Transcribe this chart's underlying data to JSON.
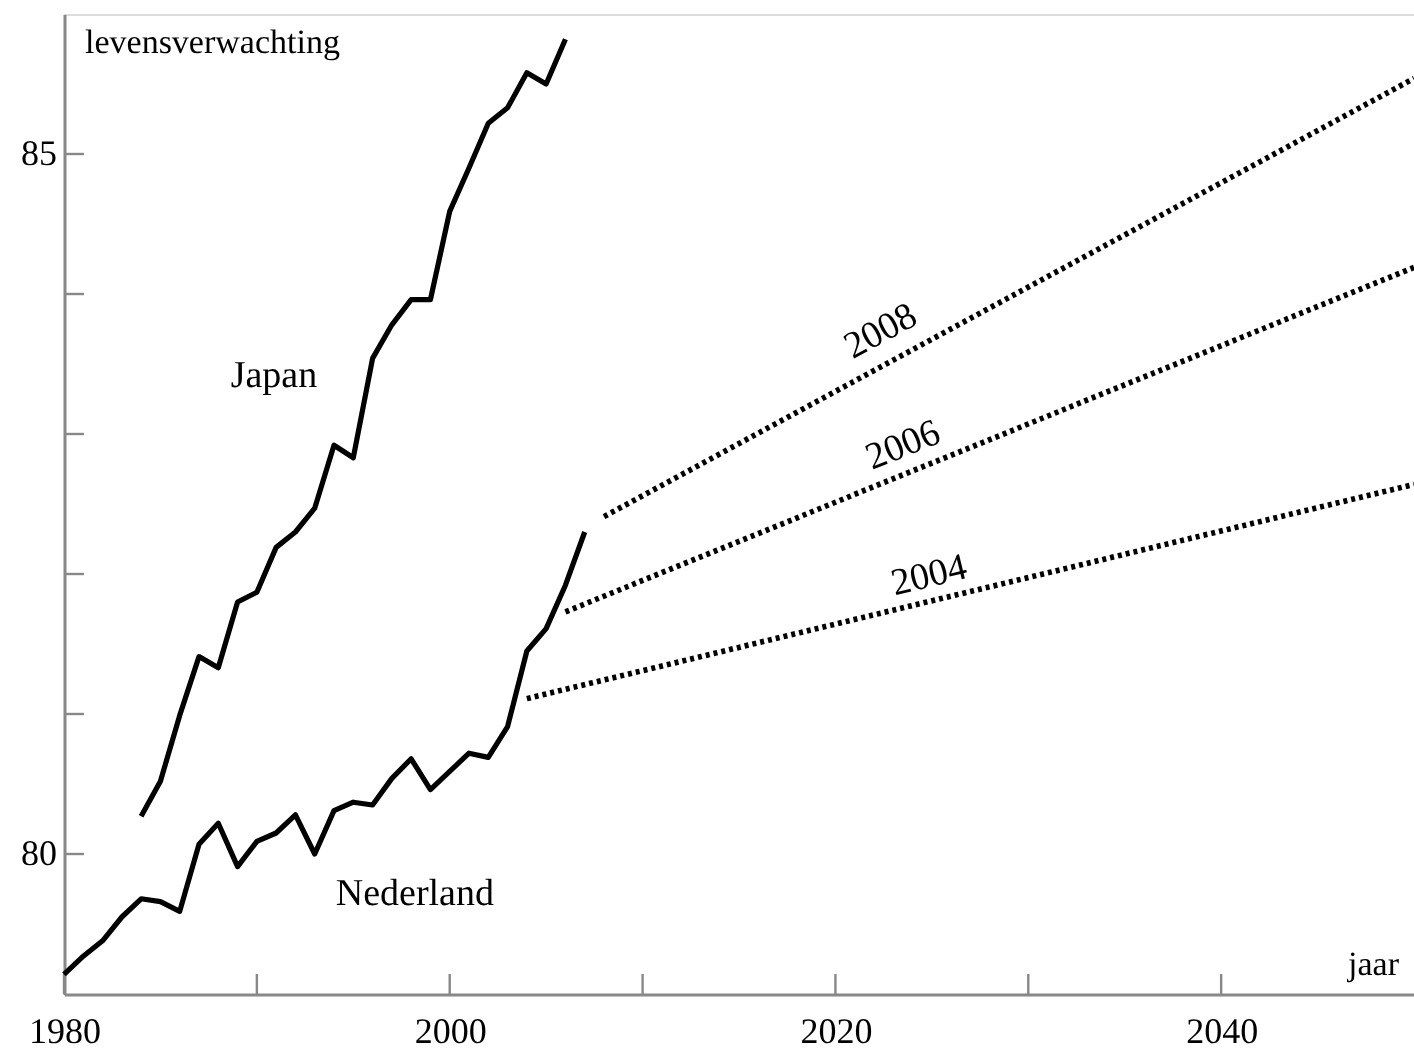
{
  "chart_data": {
    "type": "line",
    "xlabel": "jaar",
    "ylabel": "levensverwachting",
    "xlim": [
      1980,
      2050
    ],
    "ylim": [
      79,
      86
    ],
    "xticks": [
      1980,
      {
        "value": 1990,
        "label": null
      },
      2000,
      {
        "value": 2010,
        "label": null
      },
      2020,
      {
        "value": 2030,
        "label": null
      },
      2040
    ],
    "yticks": [
      80,
      {
        "value": 81,
        "label": null
      },
      {
        "value": 82,
        "label": null
      },
      {
        "value": 83,
        "label": null
      },
      {
        "value": 84,
        "label": null
      },
      85
    ],
    "grid": false,
    "marker": "none",
    "series": [
      {
        "name": "Japan",
        "color": "#000000",
        "line_style": "solid",
        "x": [
          1984,
          1985,
          1986,
          1987,
          1988,
          1989,
          1990,
          1991,
          1992,
          1993,
          1994,
          1995,
          1996,
          1997,
          1998,
          1999,
          2000,
          2001,
          2002,
          2003,
          2004,
          2005,
          2006
        ],
        "values": [
          80.27,
          80.52,
          80.99,
          81.41,
          81.33,
          81.8,
          81.87,
          82.19,
          82.3,
          82.47,
          82.92,
          82.83,
          83.54,
          83.78,
          83.96,
          83.96,
          84.59,
          84.9,
          85.22,
          85.33,
          85.58,
          85.5,
          85.82
        ]
      },
      {
        "name": "Nederland",
        "color": "#000000",
        "line_style": "solid",
        "x": [
          1980,
          1981,
          1982,
          1983,
          1984,
          1985,
          1986,
          1987,
          1988,
          1989,
          1990,
          1991,
          1992,
          1993,
          1994,
          1995,
          1996,
          1997,
          1998,
          1999,
          2000,
          2001,
          2002,
          2003,
          2004,
          2005,
          2006,
          2007
        ],
        "values": [
          79.14,
          79.27,
          79.38,
          79.55,
          79.68,
          79.66,
          79.59,
          80.07,
          80.22,
          79.91,
          80.09,
          80.15,
          80.28,
          80.0,
          80.31,
          80.37,
          80.35,
          80.54,
          80.68,
          80.46,
          80.59,
          80.72,
          80.69,
          80.91,
          81.45,
          81.61,
          81.92,
          82.3
        ]
      },
      {
        "name": "2008",
        "color": "#000000",
        "line_style": "dotted",
        "x": [
          2008,
          2050
        ],
        "values": [
          82.41,
          85.54
        ]
      },
      {
        "name": "2006",
        "color": "#000000",
        "line_style": "dotted",
        "x": [
          2006,
          2050
        ],
        "values": [
          81.73,
          84.19
        ]
      },
      {
        "name": "2004",
        "color": "#000000",
        "line_style": "dotted",
        "x": [
          2004,
          2050
        ],
        "values": [
          81.11,
          82.64
        ]
      }
    ]
  }
}
